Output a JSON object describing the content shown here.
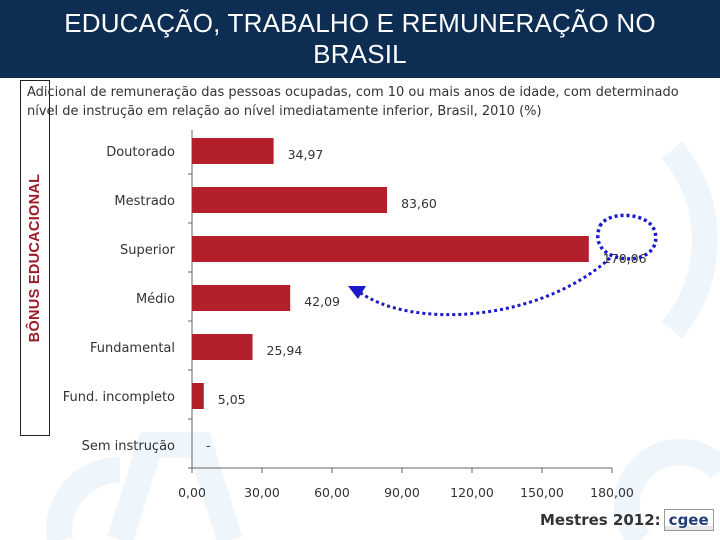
{
  "header": {
    "title": "EDUCAÇÃO, TRABALHO E REMUNERAÇÃO NO BRASIL"
  },
  "side_label": "BÔNUS EDUCACIONAL",
  "footer": {
    "text": "Mestres 2012:",
    "logo": "cgee"
  },
  "colors": {
    "bar": "#b3202c",
    "header_bg": "#0d2e52",
    "annotation": "#1a1acc",
    "side_label": "#9b1b26"
  },
  "chart_data": {
    "type": "bar",
    "orientation": "horizontal",
    "title": "Adicional de remuneração das pessoas ocupadas, com 10 ou mais anos de idade, com determinado nível de instrução em relação ao nível imediatamente inferior, Brasil, 2010 (%)",
    "categories": [
      "Doutorado",
      "Mestrado",
      "Superior",
      "Médio",
      "Fundamental",
      "Fund. incompleto",
      "Sem instrução"
    ],
    "values": [
      34.97,
      83.6,
      170.06,
      42.09,
      25.94,
      5.05,
      null
    ],
    "value_labels": [
      "34,97",
      "83,60",
      "170,06",
      "42,09",
      "25,94",
      "5,05",
      "-"
    ],
    "xlim": [
      0,
      180
    ],
    "xticks": [
      0,
      30,
      60,
      90,
      120,
      150,
      180
    ],
    "xtick_labels": [
      "0,00",
      "30,00",
      "60,00",
      "90,00",
      "120,00",
      "150,00",
      "180,00"
    ],
    "grid": false,
    "annotation": {
      "type": "arrow",
      "from": "Superior",
      "to": "Médio",
      "highlight": "170,06"
    }
  }
}
